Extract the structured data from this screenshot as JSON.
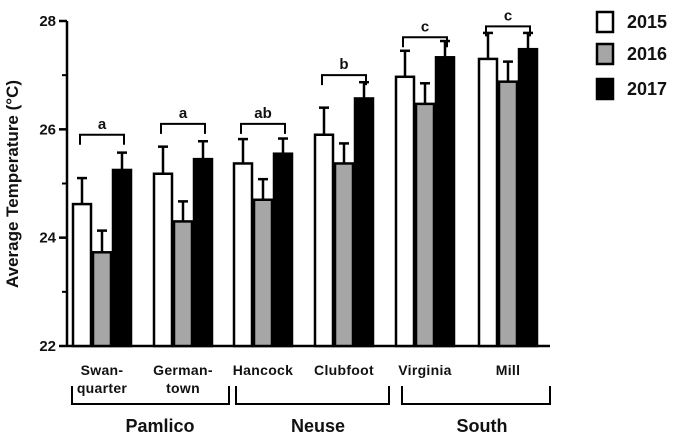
{
  "chart_data": {
    "type": "bar",
    "ylabel": "Average Temperature (°C)",
    "ylim": [
      22,
      28
    ],
    "yticks": [
      "22",
      "24",
      "26",
      "28"
    ],
    "categories": [
      [
        "Swan-",
        "quarter"
      ],
      [
        "German-",
        "town"
      ],
      [
        "Hancock"
      ],
      [
        "Clubfoot"
      ],
      [
        "Virginia"
      ],
      [
        "Mill"
      ]
    ],
    "groups": [
      {
        "label": "Pamlico",
        "categories": [
          0,
          1
        ]
      },
      {
        "label": "Neuse",
        "categories": [
          2,
          3
        ]
      },
      {
        "label": "South",
        "categories": [
          4,
          5
        ]
      }
    ],
    "series": [
      {
        "name": "2015",
        "color": "#ffffff",
        "values": [
          24.62,
          25.18,
          25.37,
          25.9,
          26.97,
          27.3
        ],
        "errors": [
          0.48,
          0.5,
          0.45,
          0.5,
          0.48,
          0.48
        ]
      },
      {
        "name": "2016",
        "color": "#a6a6a6",
        "values": [
          23.73,
          24.3,
          24.7,
          25.37,
          26.47,
          26.88
        ],
        "errors": [
          0.4,
          0.37,
          0.38,
          0.37,
          0.38,
          0.37
        ]
      },
      {
        "name": "2017",
        "color": "#000000",
        "values": [
          25.25,
          25.45,
          25.55,
          26.57,
          27.33,
          27.48
        ],
        "errors": [
          0.32,
          0.33,
          0.28,
          0.3,
          0.3,
          0.3
        ]
      }
    ],
    "significance": [
      {
        "label": "a",
        "category": 0,
        "bracket_y": 25.9
      },
      {
        "label": "a",
        "category": 1,
        "bracket_y": 26.1
      },
      {
        "label": "ab",
        "category": 2,
        "bracket_y": 26.1
      },
      {
        "label": "b",
        "category": 3,
        "bracket_y": 27.0
      },
      {
        "label": "c",
        "category": 4,
        "bracket_y": 27.7
      },
      {
        "label": "c",
        "category": 5,
        "bracket_y": 27.9
      }
    ],
    "legend_position": "right",
    "grid": false
  }
}
